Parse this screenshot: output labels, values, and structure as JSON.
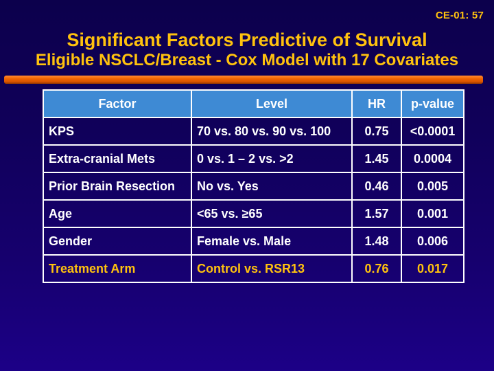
{
  "slide": {
    "slide_code": "CE-01: 57",
    "title": "Significant Factors Predictive of Survival",
    "subtitle": "Eligible NSCLC/Breast - Cox Model with 17 Covariates",
    "colors": {
      "background_top": "#0c004c",
      "background_bottom": "#1c0087",
      "gold_text": "#ffc20e",
      "white_text": "#ffffff",
      "header_blue": "#3e8ad4",
      "divider_orange": "#ef6300",
      "table_border": "#ffffff"
    }
  },
  "chart_data": {
    "type": "table",
    "title": "Significant Factors Predictive of Survival — Eligible NSCLC/Breast - Cox Model with 17 Covariates",
    "columns": [
      "Factor",
      "Level",
      "HR",
      "p-value"
    ],
    "rows": [
      [
        "KPS",
        "70 vs. 80 vs. 90 vs. 100",
        "0.75",
        "<0.0001"
      ],
      [
        "Extra-cranial Mets",
        "0 vs. 1 – 2 vs. >2",
        "1.45",
        "0.0004"
      ],
      [
        "Prior Brain Resection",
        "No vs. Yes",
        "0.46",
        "0.005"
      ],
      [
        "Age",
        "<65 vs. ≥65",
        "1.57",
        "0.001"
      ],
      [
        "Gender",
        "Female vs. Male",
        "1.48",
        "0.006"
      ],
      [
        "Treatment Arm",
        "Control vs. RSR13",
        "0.76",
        "0.017"
      ]
    ],
    "highlighted_row_index": 5,
    "layout": {
      "header_background": "#3e8ad4",
      "highlight_text_color": "#ffc20e",
      "grid": true
    }
  }
}
